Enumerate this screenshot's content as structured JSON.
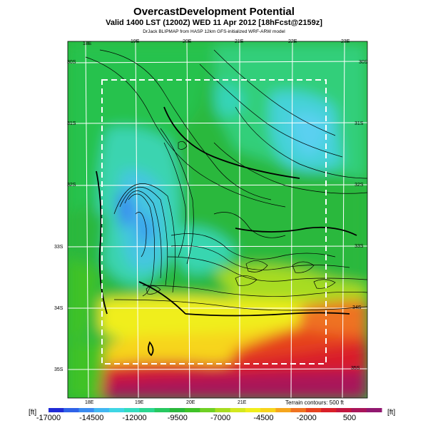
{
  "title": "OvercastDevelopment Potential",
  "subtitle": "Valid 1400 LST (1200Z) WED 11 Apr 2012 [18hFcst@2159z]",
  "credit": "DrJack BLIPMAP from HASP 12km GFS-initialized WRF-ARW model",
  "terrain_note": "Terrain contours: 500 ft",
  "unit_left": "[ft]",
  "unit_right": "[ft]",
  "top_lon_labels": [
    "18E",
    "19E",
    "20E",
    "21E",
    "22E",
    "23E"
  ],
  "bottom_lon_labels": [
    "18E",
    "19E",
    "20E",
    "21E"
  ],
  "left_lat_labels": [
    "30S",
    "31S",
    "32S",
    "33S",
    "34S",
    "35S"
  ],
  "right_lat_labels": [
    "30S",
    "31S",
    "32S",
    "33S",
    "34S",
    "35S"
  ],
  "colorbar": {
    "labels": [
      "-17000",
      "-14500",
      "-12000",
      "-9500",
      "-7000",
      "-4500",
      "-2000",
      "500"
    ],
    "colors": [
      "#1f2bd6",
      "#2f62e8",
      "#3b8cf0",
      "#42b7f2",
      "#3fd6e4",
      "#34dcc0",
      "#2bd690",
      "#27c860",
      "#2ab83c",
      "#3fc228",
      "#6fd024",
      "#a7dc20",
      "#d3e820",
      "#f0ee1c",
      "#f7d41c",
      "#f5a61d",
      "#ef7220",
      "#e6421f",
      "#d91f29",
      "#c2153f",
      "#a9155a",
      "#911870"
    ]
  }
}
